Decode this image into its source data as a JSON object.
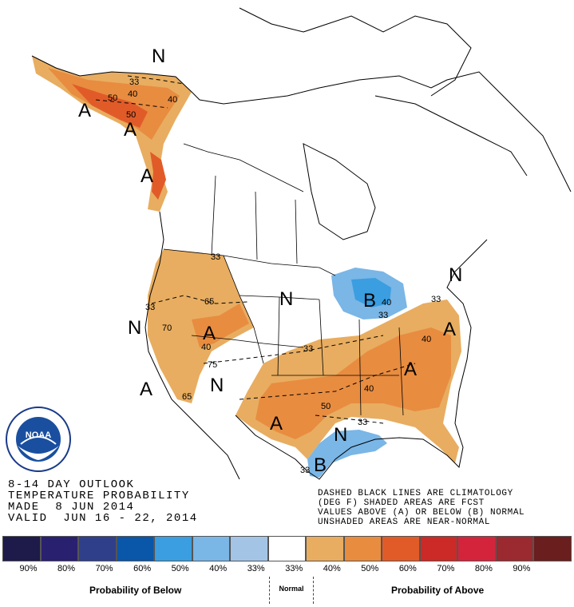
{
  "info_block": {
    "line1": "8-14 DAY OUTLOOK",
    "line2": "TEMPERATURE PROBABILITY",
    "line3": "MADE  8 JUN 2014",
    "line4": "VALID  JUN 16 - 22, 2014"
  },
  "legend_note": {
    "line1": "DASHED BLACK LINES ARE CLIMATOLOGY",
    "line2": "(DEG F) SHADED AREAS ARE FCST",
    "line3": "VALUES ABOVE (A) OR BELOW (B) NORMAL",
    "line4": "UNSHADED AREAS ARE NEAR-NORMAL"
  },
  "logo_text": "NOAA",
  "legend": {
    "swatch_colors": [
      "#1e1a4a",
      "#2a2070",
      "#2f3f8a",
      "#0a56a8",
      "#3a9ee0",
      "#7ab6e6",
      "#a4c4e6",
      "#ffffff",
      "#e8ad60",
      "#e88c40",
      "#e15b28",
      "#cc2a26",
      "#d4243c",
      "#9a2a30",
      "#6a1e1e"
    ],
    "tick_labels": [
      "90%",
      "80%",
      "70%",
      "60%",
      "50%",
      "40%",
      "33%",
      "33%",
      "40%",
      "50%",
      "60%",
      "70%",
      "80%",
      "90%"
    ],
    "below_title": "Probability of Below",
    "normal_label": "Normal",
    "above_title": "Probability of Above"
  },
  "map_labels": {
    "letters": [
      "N",
      "A",
      "A",
      "A",
      "A",
      "N",
      "B",
      "N",
      "A",
      "A",
      "N",
      "A",
      "A",
      "N",
      "B",
      "N"
    ],
    "contour_values": [
      "33",
      "40",
      "50",
      "50",
      "33",
      "40",
      "65",
      "70",
      "40",
      "75",
      "65",
      "33",
      "40",
      "33",
      "40",
      "40",
      "50",
      "33",
      "33",
      "33",
      "33"
    ]
  },
  "colors": {
    "above_40": "#e8ad60",
    "above_50": "#e88c40",
    "above_60": "#e15b28",
    "below_40": "#7ab6e6",
    "below_50": "#3a9ee0"
  }
}
